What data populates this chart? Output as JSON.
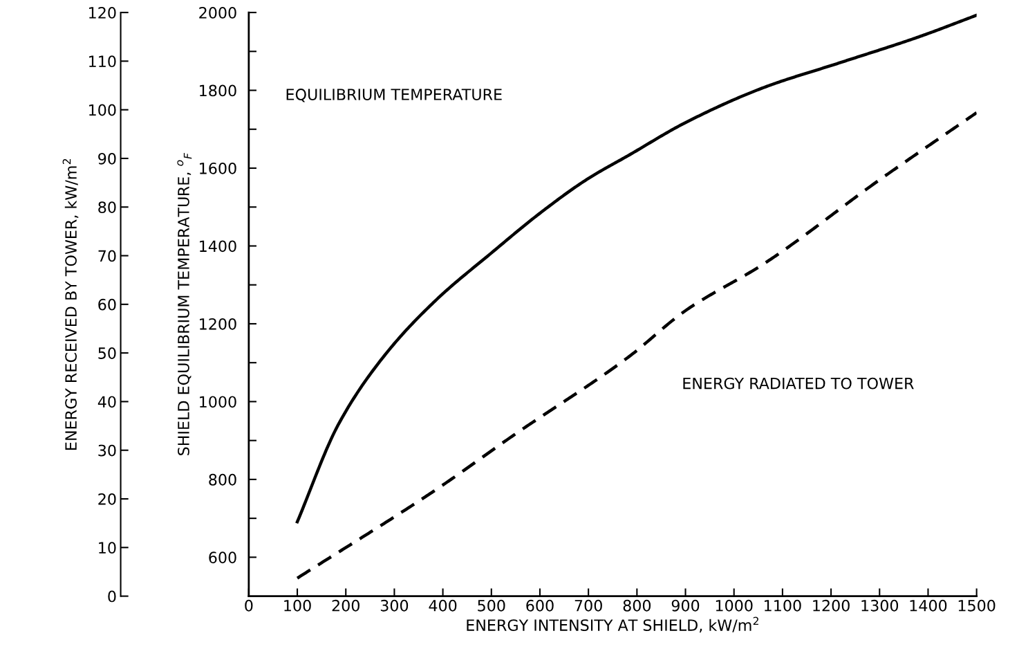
{
  "chart_data": {
    "type": "line",
    "xlabel": "ENERGY INTENSITY AT SHIELD, kW/m$^{2}$",
    "ylabel": "SHIELD EQUILIBRIUM TEMPERATURE, $^{o}$$_{F}$",
    "y2label": "ENERGY RECEIVED BY TOWER, kW/m$^{2}$",
    "xlim": [
      0,
      1500
    ],
    "xticks": [
      0,
      100,
      200,
      300,
      400,
      500,
      600,
      700,
      800,
      900,
      1000,
      1100,
      1200,
      1300,
      1400,
      1500
    ],
    "ylim": [
      500,
      2000
    ],
    "yticks": [
      600,
      {
        "value": 700,
        "label": null
      },
      800,
      {
        "value": 900,
        "label": null
      },
      1000,
      {
        "value": 1100,
        "label": null
      },
      1200,
      {
        "value": 1300,
        "label": null
      },
      1400,
      {
        "value": 1500,
        "label": null
      },
      1600,
      {
        "value": 1700,
        "label": null
      },
      1800,
      {
        "value": 1900,
        "label": null
      },
      2000
    ],
    "y2lim": [
      0,
      120
    ],
    "y2ticks": [
      0,
      10,
      20,
      30,
      40,
      50,
      60,
      70,
      80,
      90,
      100,
      110,
      120
    ],
    "annotations": [
      "EQUILIBRIUM TEMPERATURE",
      "ENERGY RADIATED TO TOWER"
    ],
    "series": [
      {
        "color": "#000000",
        "line_style": "solid",
        "x": [
          100,
          185,
          282,
          386,
          500,
          603,
          698,
          783,
          900,
          1061,
          1221,
          1380,
          1500
        ],
        "values": [
          691,
          942,
          1122,
          1261,
          1382,
          1487,
          1572,
          1633,
          1717,
          1807,
          1872,
          1937,
          1993
        ]
      },
      {
        "color": "#000000",
        "line_style": "dashed",
        "axis": "y2",
        "x": [
          100,
          386,
          546,
          783,
          900,
          1061,
          1300,
          1500
        ],
        "values": [
          3.7,
          21.9,
          33.1,
          49.2,
          58.7,
          68.3,
          85.6,
          99.4
        ]
      }
    ]
  }
}
